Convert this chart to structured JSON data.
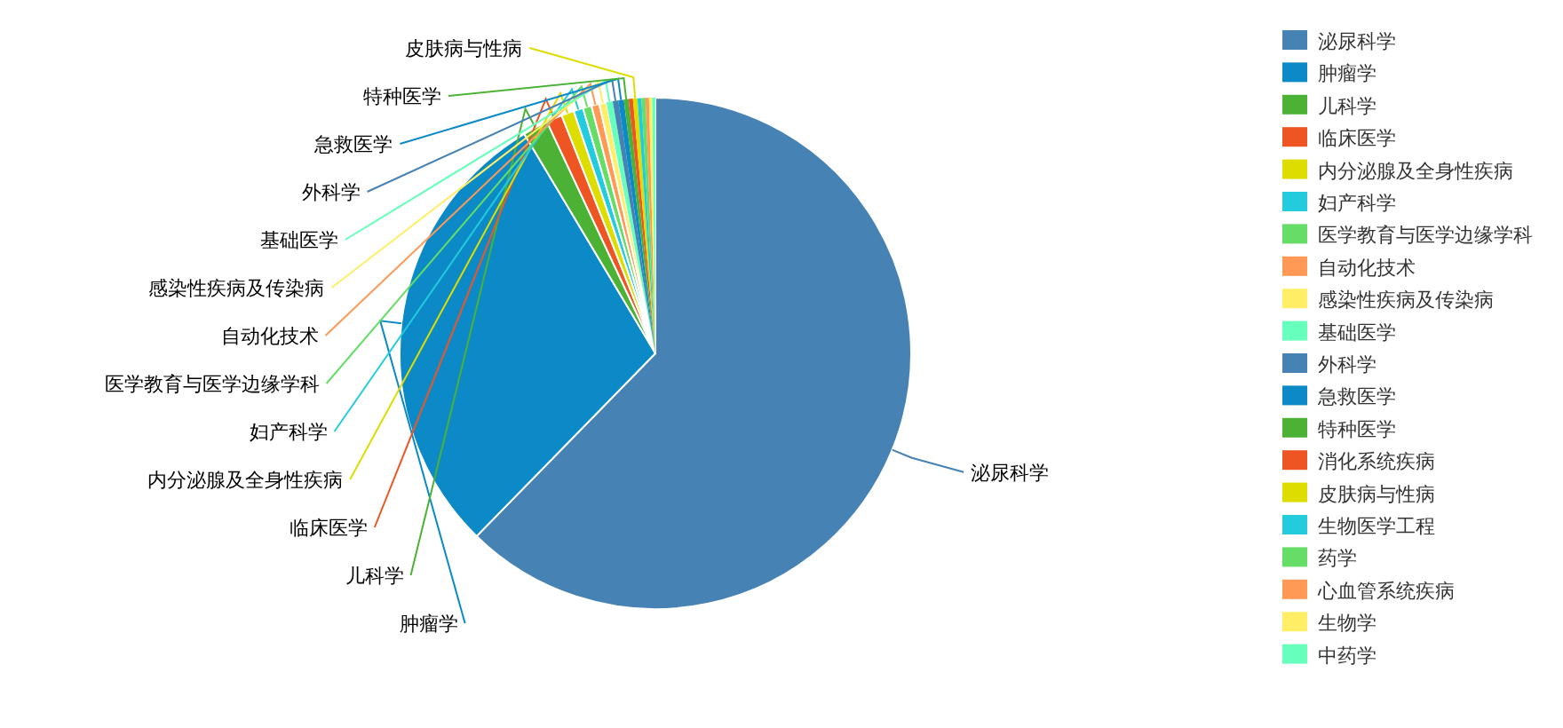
{
  "chart_data": {
    "type": "pie",
    "categories": [
      "泌尿科学",
      "肿瘤学",
      "儿科学",
      "临床医学",
      "内分泌腺及全身性疾病",
      "妇产科学",
      "医学教育与医学边缘学科",
      "自动化技术",
      "感染性疾病及传染病",
      "基础医学",
      "外科学",
      "急救医学",
      "特种医学",
      "消化系统疾病",
      "皮肤病与性病",
      "生物医学工程",
      "药学",
      "心血管系统疾病",
      "生物学",
      "中药学"
    ],
    "values": [
      62.3,
      29.1,
      1.6,
      1.0,
      0.8,
      0.6,
      0.55,
      0.5,
      0.45,
      0.4,
      0.35,
      0.35,
      0.3,
      0.27,
      0.28,
      0.25,
      0.25,
      0.22,
      0.2,
      0.2
    ],
    "colors": [
      "#4682b4",
      "#0b8ac7",
      "#4cb236",
      "#ee5522",
      "#dddd00",
      "#22ccdd",
      "#66dd66",
      "#ff9955",
      "#ffee66",
      "#66ffbb",
      "#4682b4",
      "#0b8ac7",
      "#4cb236",
      "#ee5522",
      "#dddd00",
      "#22ccdd",
      "#66dd66",
      "#ff9955",
      "#ffee66",
      "#66ffbb"
    ],
    "legend": "right"
  }
}
